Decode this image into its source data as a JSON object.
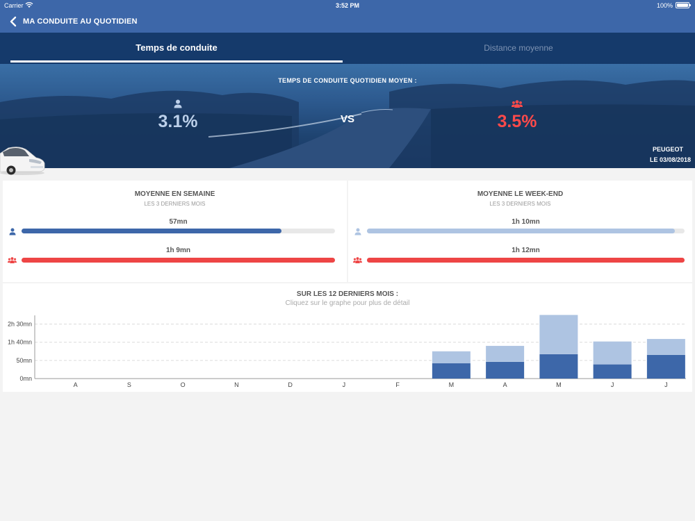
{
  "status_bar": {
    "carrier": "Carrier",
    "time": "3:52 PM",
    "battery": "100%"
  },
  "nav": {
    "title": "MA CONDUITE AU QUOTIDIEN"
  },
  "tabs": [
    {
      "label": "Temps de conduite",
      "active": true
    },
    {
      "label": "Distance moyenne",
      "active": false
    }
  ],
  "hero": {
    "headline": "TEMPS DE CONDUITE QUOTIDIEN MOYEN :",
    "user_value": "3.1%",
    "group_value": "3.5%",
    "vs": "VS",
    "brand": "PEUGEOT",
    "date": "LE 03/08/2018"
  },
  "weekday": {
    "title": "MOYENNE EN SEMAINE",
    "subtitle": "LES 3 DERNIERS MOIS",
    "user_label": "57mn",
    "user_fraction": 0.83,
    "group_label": "1h 9mn",
    "group_fraction": 1.0
  },
  "weekend": {
    "title": "MOYENNE LE WEEK-END",
    "subtitle": "LES 3 DERNIERS MOIS",
    "user_label": "1h 10mn",
    "user_fraction": 0.97,
    "group_label": "1h 12mn",
    "group_fraction": 1.0
  },
  "colors": {
    "user": "#3d67a9",
    "user_light": "#aec4e2",
    "group": "#ee4545",
    "weekend_user": "#aec4e2"
  },
  "icons": {
    "user": "user-icon",
    "group": "group-icon",
    "back": "chevron-left-icon",
    "wifi": "wifi-icon",
    "battery": "battery-icon",
    "car": "car-icon"
  },
  "chart": {
    "title": "SUR LES 12 DERNIERS MOIS :",
    "subtitle": "Cliquez sur le graphe pour plus de détail"
  },
  "chart_data": {
    "type": "bar",
    "stacked": true,
    "categories": [
      "A",
      "S",
      "O",
      "N",
      "D",
      "J",
      "F",
      "M",
      "A",
      "M",
      "J",
      "J"
    ],
    "y_tick_labels": [
      "0mn",
      "50mn",
      "1h 40mn",
      "2h 30mn"
    ],
    "y_tick_values": [
      0,
      50,
      100,
      150
    ],
    "ylim": [
      0,
      170
    ],
    "grid": true,
    "series": [
      {
        "values": [
          0,
          0,
          0,
          0,
          0,
          0,
          0,
          42,
          46,
          67,
          39,
          65
        ]
      },
      {
        "values": [
          0,
          0,
          0,
          0,
          0,
          0,
          0,
          33,
          44,
          108,
          63,
          44
        ]
      }
    ]
  }
}
